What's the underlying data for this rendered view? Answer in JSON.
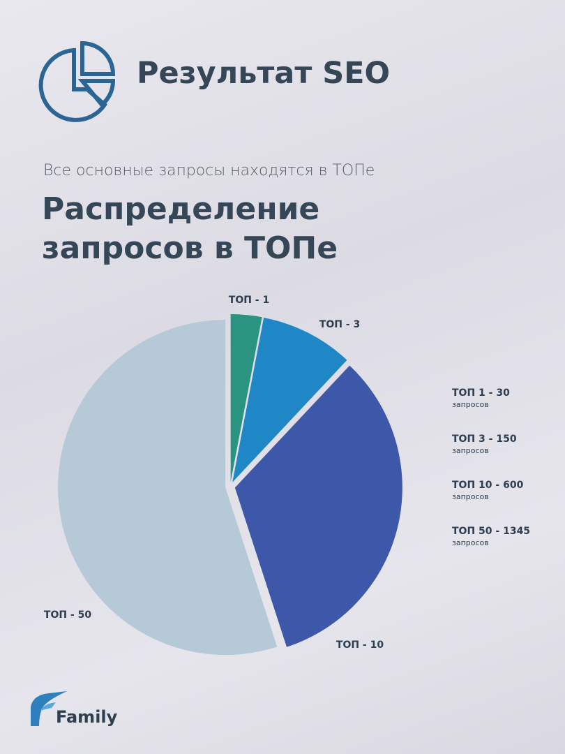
{
  "header": {
    "title": "Результат SEO"
  },
  "chart_data": {
    "type": "pie",
    "subtitle": "Все основные запросы находятся в ТОПе",
    "title": "Распределение запросов в ТОПе",
    "categories": [
      "ТОП - 1",
      "ТОП - 3",
      "ТОП - 10",
      "ТОП - 50"
    ],
    "values": [
      3,
      9,
      33,
      55
    ],
    "colors": [
      "#2a9480",
      "#1f87c6",
      "#3d58a8",
      "#b5c9d6"
    ]
  },
  "notes": [
    {
      "title": "ТОП 1 - 30",
      "sub": "запросов"
    },
    {
      "title": "ТОП 3 - 150",
      "sub": "запросов"
    },
    {
      "title": "ТОП 10 - 600",
      "sub": "запросов"
    },
    {
      "title": "ТОП 50 - 1345",
      "sub": "запросов"
    }
  ],
  "logo": {
    "text": "Family"
  }
}
